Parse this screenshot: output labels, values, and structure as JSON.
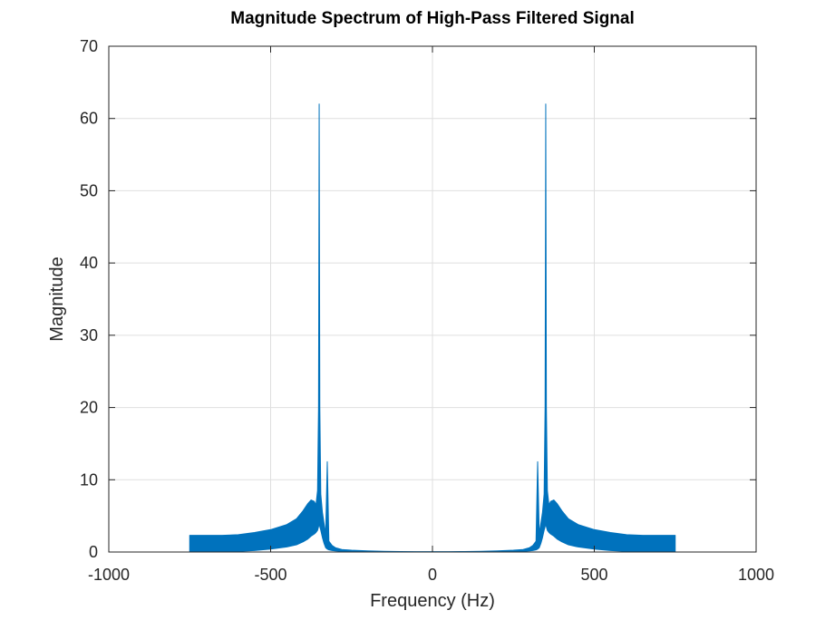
{
  "chart_data": {
    "type": "line",
    "title": "Magnitude Spectrum of High-Pass Filtered Signal",
    "xlabel": "Frequency (Hz)",
    "ylabel": "Magnitude",
    "xlim": [
      -1000,
      1000
    ],
    "ylim": [
      0,
      70
    ],
    "xticks": [
      -1000,
      -500,
      0,
      500,
      1000
    ],
    "xtick_labels": [
      "-1000",
      "-500",
      "0",
      "500",
      "1000"
    ],
    "yticks": [
      0,
      10,
      20,
      30,
      40,
      50,
      60,
      70
    ],
    "ytick_labels": [
      "0",
      "10",
      "20",
      "30",
      "40",
      "50",
      "60",
      "70"
    ],
    "grid": true,
    "line_color": "#0072BD",
    "series": [
      {
        "x": [
          -750,
          -700,
          -650,
          -600,
          -550,
          -500,
          -450,
          -420,
          -400,
          -385,
          -375,
          -365,
          -360,
          -355,
          -352,
          -350,
          -348,
          -345,
          -340,
          -335,
          -330,
          -325,
          -320,
          -310,
          -300,
          -280,
          -250,
          -200,
          -150,
          -100,
          -50,
          0,
          50,
          100,
          150,
          200,
          250,
          280,
          300,
          310,
          320,
          325,
          330,
          335,
          340,
          345,
          348,
          350,
          352,
          355,
          360,
          365,
          375,
          385,
          400,
          420,
          450,
          500,
          550,
          600,
          650,
          700,
          750
        ],
        "upper": [
          2.3,
          2.3,
          2.3,
          2.4,
          2.7,
          3.1,
          3.8,
          4.6,
          5.7,
          6.7,
          7.2,
          7.0,
          6.5,
          8.5,
          20.0,
          62.0,
          20.0,
          8.0,
          5.5,
          4.0,
          2.5,
          12.5,
          1.5,
          0.9,
          0.6,
          0.35,
          0.25,
          0.15,
          0.1,
          0.07,
          0.05,
          0.04,
          0.05,
          0.07,
          0.1,
          0.15,
          0.25,
          0.35,
          0.6,
          0.9,
          1.5,
          12.5,
          2.5,
          4.0,
          5.5,
          8.0,
          20.0,
          62.0,
          20.0,
          8.5,
          6.5,
          7.0,
          7.2,
          6.7,
          5.7,
          4.6,
          3.8,
          3.1,
          2.7,
          2.4,
          2.3,
          2.3,
          2.3
        ],
        "lower": [
          0.0,
          0.0,
          0.0,
          0.1,
          0.2,
          0.4,
          0.7,
          1.0,
          1.4,
          1.8,
          2.2,
          2.5,
          2.7,
          3.0,
          3.5,
          4.0,
          3.5,
          3.0,
          2.0,
          1.2,
          0.6,
          0.4,
          0.3,
          0.2,
          0.15,
          0.1,
          0.08,
          0.05,
          0.03,
          0.02,
          0.01,
          0.01,
          0.01,
          0.02,
          0.03,
          0.05,
          0.08,
          0.1,
          0.15,
          0.2,
          0.3,
          0.4,
          0.6,
          1.2,
          2.0,
          3.0,
          3.5,
          4.0,
          3.5,
          3.0,
          2.7,
          2.5,
          2.2,
          1.8,
          1.4,
          1.0,
          0.7,
          0.4,
          0.2,
          0.1,
          0.0,
          0.0,
          0.0
        ]
      }
    ]
  }
}
